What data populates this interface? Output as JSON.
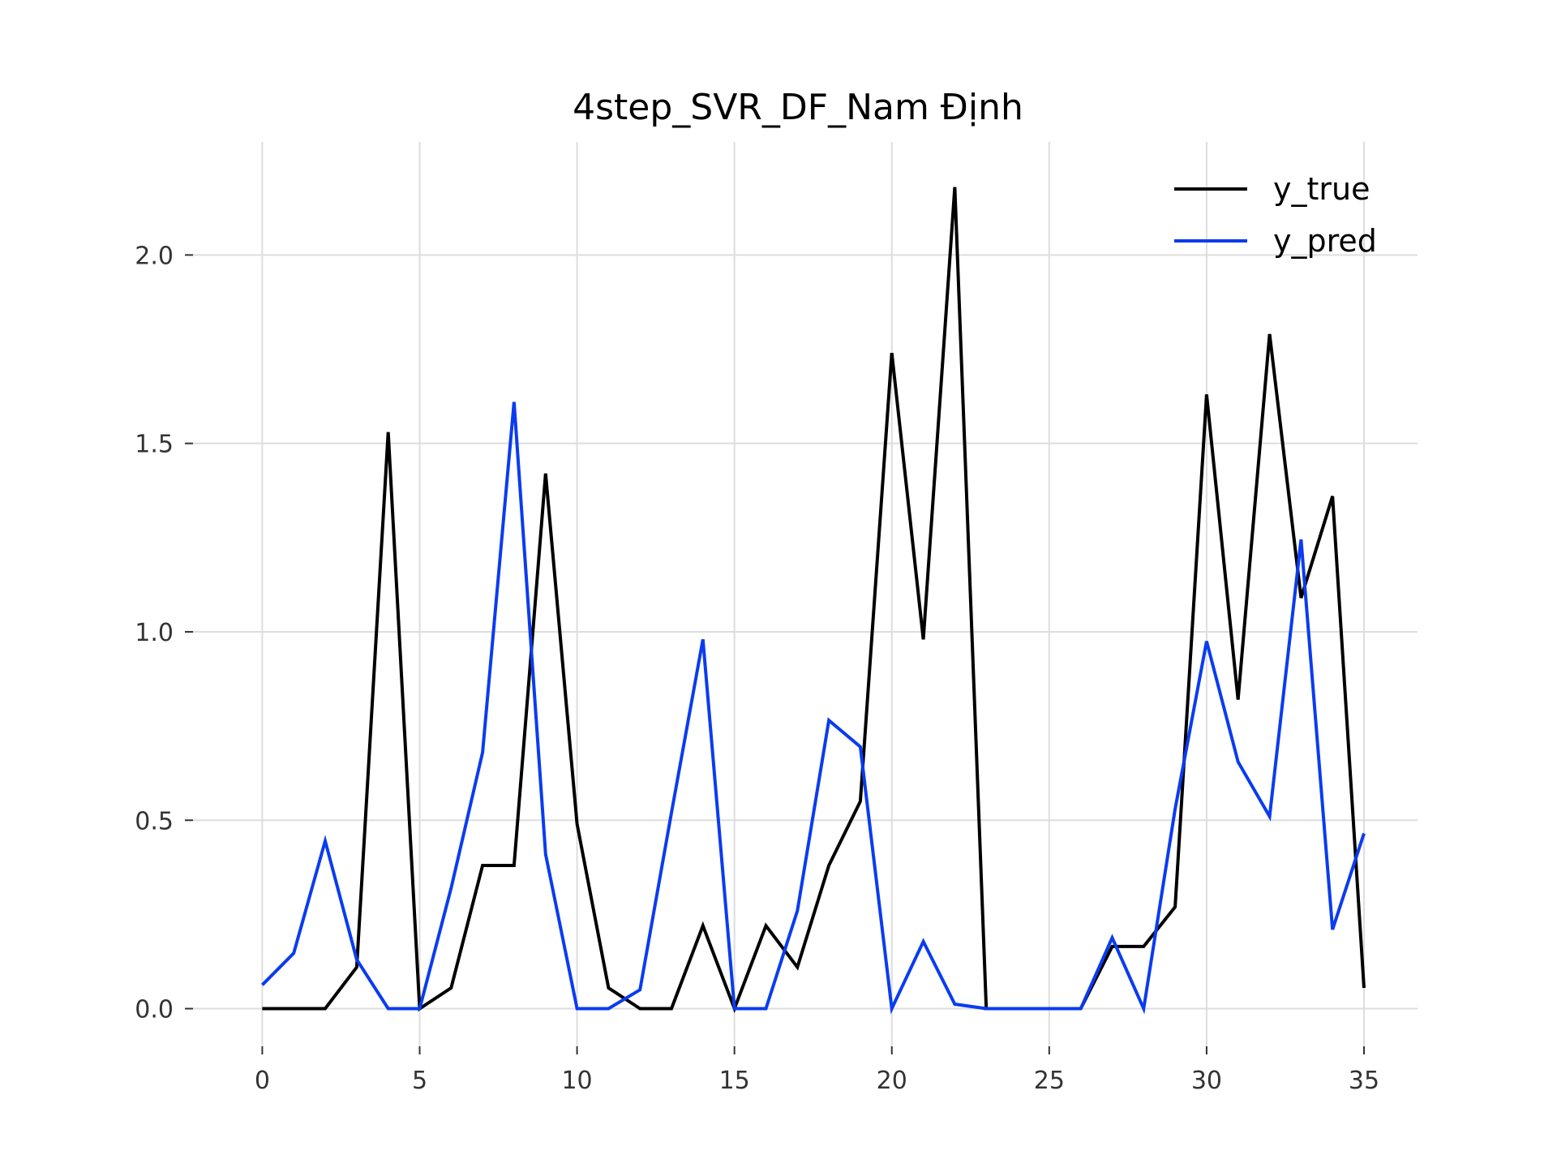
{
  "chart_data": {
    "type": "line",
    "title": "4step_SVR_DF_Nam Định",
    "xlabel": "",
    "ylabel": "",
    "xlim": [
      -2.2,
      36.7
    ],
    "ylim": [
      -0.1,
      2.3
    ],
    "xticks": [
      0,
      5,
      10,
      15,
      20,
      25,
      30,
      35
    ],
    "xtick_labels": [
      "0",
      "5",
      "10",
      "15",
      "20",
      "25",
      "30",
      "35"
    ],
    "yticks": [
      0.0,
      0.5,
      1.0,
      1.5,
      2.0
    ],
    "ytick_labels": [
      "0.0",
      "0.5",
      "1.0",
      "1.5",
      "2.0"
    ],
    "grid": true,
    "legend_position": "top-right",
    "x": [
      0,
      1,
      2,
      3,
      4,
      5,
      6,
      7,
      8,
      9,
      10,
      11,
      12,
      13,
      14,
      15,
      16,
      17,
      18,
      19,
      20,
      21,
      22,
      23,
      24,
      25,
      26,
      27,
      28,
      29,
      30,
      31,
      32,
      33,
      34,
      35
    ],
    "series": [
      {
        "name": "y_true",
        "color": "#000000",
        "values": [
          0.0,
          0.0,
          0.0,
          0.11,
          1.53,
          0.0,
          0.055,
          0.38,
          0.38,
          1.42,
          0.49,
          0.055,
          0.0,
          0.0,
          0.22,
          0.0,
          0.22,
          0.11,
          0.38,
          0.55,
          1.74,
          0.98,
          2.18,
          0.0,
          0.0,
          0.0,
          0.0,
          0.165,
          0.165,
          0.27,
          1.63,
          0.82,
          1.79,
          1.09,
          1.36,
          0.055
        ]
      },
      {
        "name": "y_pred",
        "color": "#0a3cf0",
        "values": [
          0.063,
          0.147,
          0.445,
          0.13,
          0.0,
          0.0,
          0.32,
          0.68,
          1.61,
          0.41,
          0.0,
          0.0,
          0.05,
          0.52,
          0.98,
          0.0,
          0.0,
          0.26,
          0.765,
          0.695,
          0.0,
          0.178,
          0.012,
          0.0,
          0.0,
          0.0,
          0.0,
          0.188,
          0.0,
          0.53,
          0.975,
          0.655,
          0.51,
          1.245,
          0.21,
          0.465
        ]
      }
    ]
  }
}
